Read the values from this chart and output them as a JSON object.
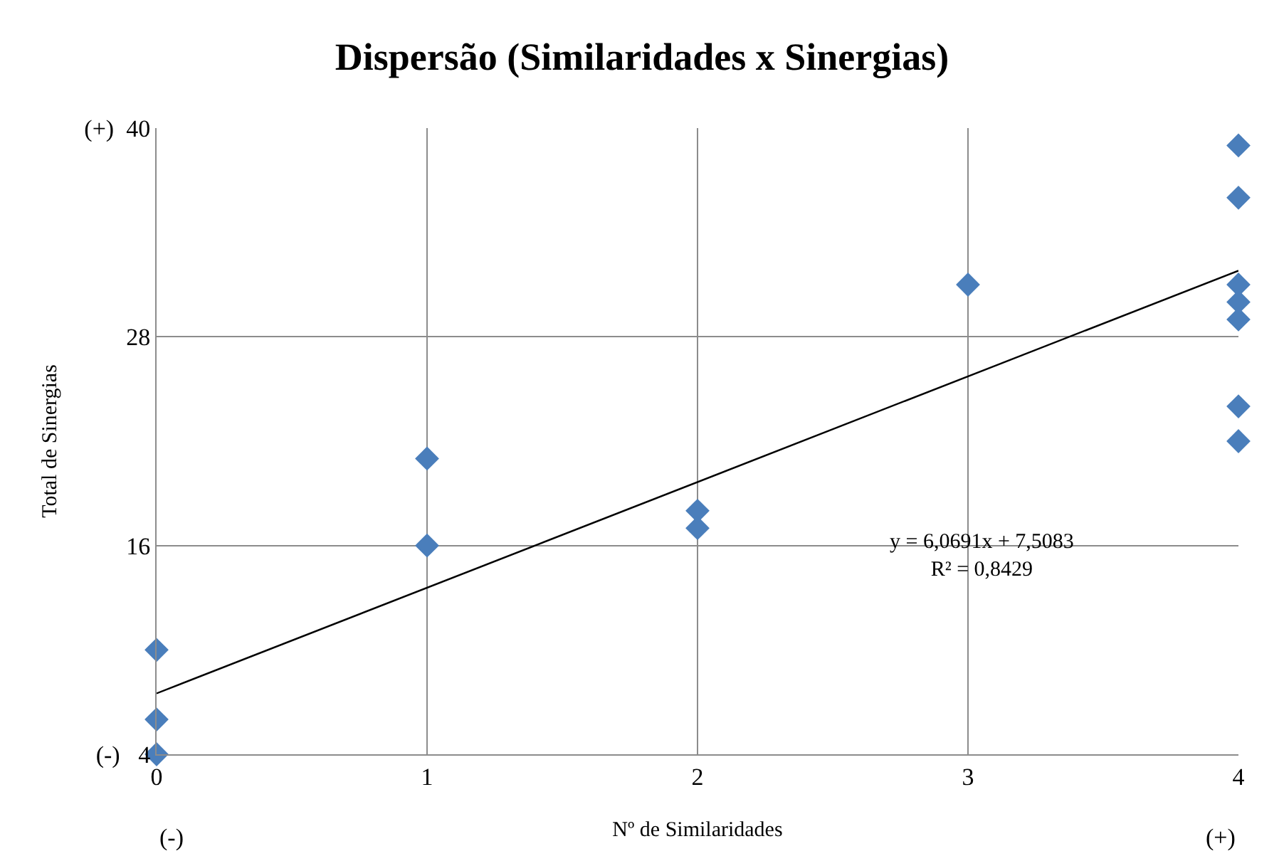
{
  "chart_data": {
    "type": "scatter",
    "title": "Dispersão (Similaridades x Sinergias)",
    "xlabel": "Nº de Similaridades",
    "ylabel": "Total de Sinergias",
    "marker": "diamond",
    "grid": true,
    "xlim": [
      0,
      4
    ],
    "xticks": [
      0,
      1,
      2,
      3,
      4
    ],
    "ylim": [
      4,
      40
    ],
    "yticks": [
      {
        "value": 4,
        "label": "(-)   4"
      },
      16,
      28,
      {
        "value": 40,
        "label": "(+)  40"
      }
    ],
    "series": [
      {
        "color": "#4a7ebb",
        "x": [
          0,
          0,
          0,
          1,
          1,
          2,
          2,
          3,
          4,
          4,
          4,
          4,
          4,
          4,
          4
        ],
        "values": [
          10,
          6,
          4,
          21,
          16,
          18,
          17,
          31,
          39,
          36,
          31,
          30,
          29,
          24,
          22
        ]
      },
      {
        "type": "line",
        "marker": "none",
        "color": "#000000",
        "x": [
          0,
          4
        ],
        "values": [
          7.5,
          31.8
        ]
      }
    ],
    "annotations": [
      "y = 6,0691x + 7,5083\nR² = 0,8429",
      "(-)",
      "(+)"
    ]
  }
}
